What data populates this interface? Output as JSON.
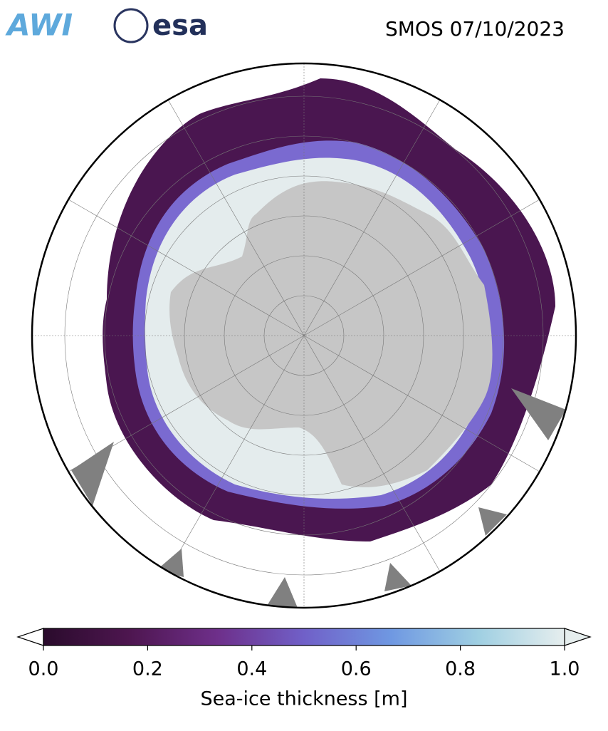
{
  "header": {
    "logos": [
      "AWI",
      "esa"
    ],
    "title": "SMOS 07/10/2023"
  },
  "colorbar": {
    "label": "Sea-ice thickness [m]",
    "lim": [
      0,
      1
    ],
    "ticks": [
      {
        "value": 0,
        "label": "0.0"
      },
      0.2,
      0.4,
      0.6,
      0.8,
      {
        "value": 1,
        "label": "1.0"
      }
    ],
    "colors": [
      "#2a0b2c",
      "#4e1650",
      "#6e2f8a",
      "#7060c8",
      "#6f98e2",
      "#9fcfe2",
      "#e6eeee"
    ]
  }
}
